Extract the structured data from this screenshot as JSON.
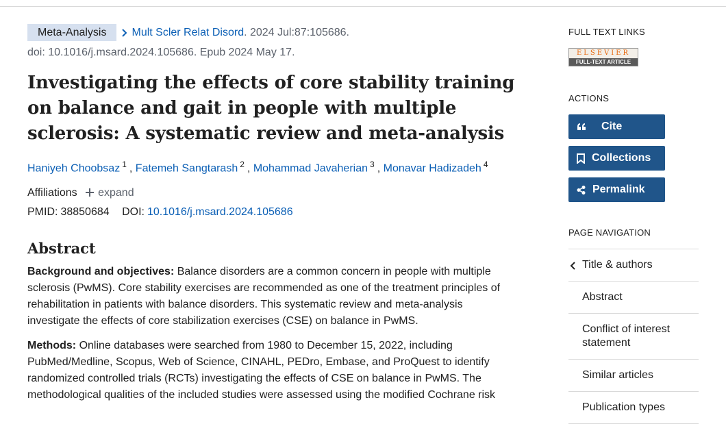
{
  "header": {
    "pub_type": "Meta-Analysis",
    "journal": "Mult Scler Relat Disord",
    "citation": ". 2024 Jul:87:105686.",
    "doi_line": "doi: 10.1016/j.msard.2024.105686. Epub 2024 May 17."
  },
  "title": "Investigating the effects of core stability training on balance and gait in people with multiple sclerosis: A systematic review and meta-analysis",
  "author_separator": ",",
  "authors": [
    {
      "name": "Haniyeh Choobsaz",
      "aff": "1"
    },
    {
      "name": "Fatemeh Sangtarash",
      "aff": "2"
    },
    {
      "name": "Mohammad Javaherian",
      "aff": "3"
    },
    {
      "name": "Monavar Hadizadeh",
      "aff": "4"
    }
  ],
  "affiliations": {
    "label": "Affiliations",
    "expand": "expand"
  },
  "ids": {
    "pmid_label": "PMID:",
    "pmid": "38850684",
    "doi_label": "DOI:",
    "doi": "10.1016/j.msard.2024.105686"
  },
  "abstract": {
    "heading": "Abstract",
    "sections": [
      {
        "label": "Background and objectives:",
        "text": "Balance disorders are a common concern in people with multiple sclerosis (PwMS). Core stability exercises are recommended as one of the treatment principles of rehabilitation in patients with balance disorders. This systematic review and meta-analysis investigate the effects of core stabilization exercises (CSE) on balance in PwMS."
      },
      {
        "label": "Methods:",
        "text": "Online databases were searched from 1980 to December 15, 2022, including PubMed/Medline, Scopus, Web of Science, CINAHL, PEDro, Embase, and ProQuest to identify randomized controlled trials (RCTs) investigating the effects of CSE on balance in PwMS. The methodological qualities of the included studies were assessed using the modified Cochrane risk"
      }
    ]
  },
  "sidebar": {
    "full_text_heading": "FULL TEXT LINKS",
    "logo_top": "ELSEVIER",
    "logo_bottom": "FULL-TEXT ARTICLE",
    "actions_heading": "ACTIONS",
    "actions": [
      "Cite",
      "Collections",
      "Permalink"
    ],
    "nav_heading": "PAGE NAVIGATION",
    "nav": [
      "Title & authors",
      "Abstract",
      "Conflict of interest statement",
      "Similar articles",
      "Publication types"
    ]
  }
}
